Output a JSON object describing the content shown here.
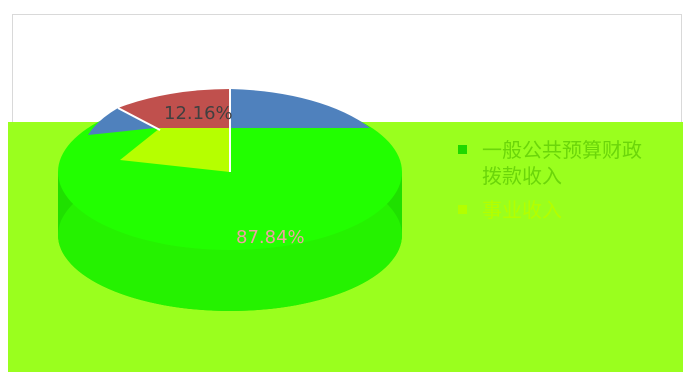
{
  "chart_data": {
    "type": "pie",
    "style": "3d",
    "slices": [
      {
        "name": "一般公共预算财政拨款收入",
        "value": 87.84,
        "label": "87.84%",
        "color": "#22ff00"
      },
      {
        "name": "事业收入",
        "value": 12.16,
        "label": "12.16%",
        "color": "#c0504d"
      }
    ],
    "legend": {
      "placement": "right",
      "items": [
        {
          "text": "一般公共预算财政\n拨款收入",
          "color": "#1fd800"
        },
        {
          "text": "事业收入",
          "color": "#b3ff00"
        }
      ]
    }
  },
  "colors": {
    "overlay": "#9aff1e",
    "pie_top": "#22ff00",
    "pie_side": "#1ee600",
    "blue_slice": "#4f81bd",
    "red_slice": "#c0504d",
    "label_text": "#404040",
    "bottom_label_text": "#f0a0a0"
  }
}
